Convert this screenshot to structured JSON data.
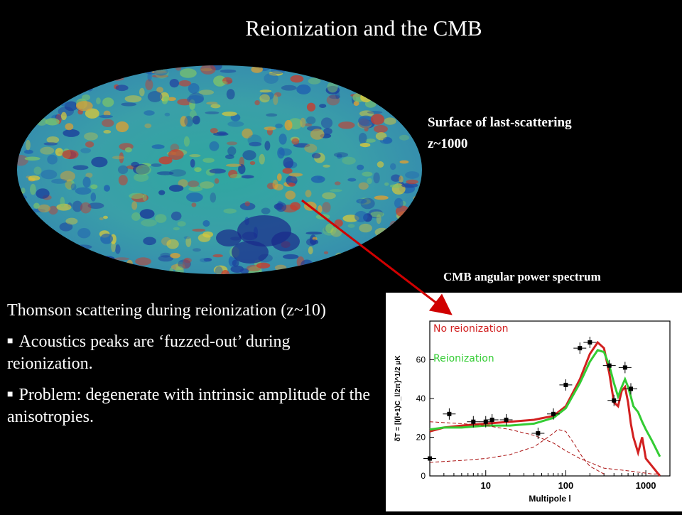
{
  "slide": {
    "title": "Reionization and the CMB",
    "surface_label": {
      "line1": "Surface of last-scattering",
      "line2": "z~1000"
    },
    "spectrum_caption": "CMB angular power spectrum",
    "body": {
      "intro": "Thomson scattering during reionization (z~10)",
      "bullets": [
        "Acoustics peaks are ‘fuzzed-out’ during reionization.",
        "Problem: degenerate with intrinsic amplitude of the anisotropies."
      ]
    }
  },
  "colors": {
    "background": "#000000",
    "text": "#ffffff",
    "arrow": "#d00000",
    "no_reion": "#d22020",
    "reion": "#33cc33"
  },
  "chart_data": {
    "type": "line",
    "title": "",
    "xlabel": "Multipole l",
    "ylabel": "δT = [l(l+1)C_l/2π]^1/2 μK",
    "xscale": "log",
    "xlim": [
      2,
      2000
    ],
    "ylim": [
      0,
      80
    ],
    "x_ticks": [
      "10",
      "100",
      "1000"
    ],
    "y_ticks": [
      "0",
      "20",
      "40",
      "60"
    ],
    "legend": [
      "No reionization",
      "Reionization"
    ],
    "series": [
      {
        "name": "No reionization",
        "color": "#d22020",
        "x": [
          2,
          3,
          5,
          10,
          20,
          40,
          70,
          100,
          150,
          200,
          250,
          300,
          350,
          400,
          450,
          500,
          550,
          600,
          650,
          700,
          800,
          900,
          1000,
          1200,
          1500
        ],
        "y": [
          23,
          25,
          26,
          27,
          28,
          29,
          31,
          36,
          50,
          63,
          69,
          66,
          53,
          38,
          36,
          44,
          46,
          38,
          27,
          20,
          12,
          20,
          9,
          5,
          0
        ]
      },
      {
        "name": "Reionization",
        "color": "#33cc33",
        "x": [
          2,
          3,
          5,
          10,
          20,
          40,
          70,
          100,
          150,
          200,
          250,
          300,
          350,
          400,
          450,
          500,
          550,
          600,
          650,
          700,
          800,
          900,
          1000,
          1200,
          1500
        ],
        "y": [
          24,
          25,
          25,
          26,
          26,
          27,
          30,
          35,
          48,
          59,
          65,
          64,
          57,
          48,
          41,
          46,
          50,
          46,
          41,
          36,
          33,
          28,
          24,
          18,
          10
        ]
      },
      {
        "name": "",
        "color": "#aa1111",
        "dashed": true,
        "x": [
          2,
          5,
          10,
          20,
          40,
          70,
          100,
          150,
          200,
          300,
          500,
          800,
          1200,
          1500
        ],
        "y": [
          28,
          27,
          26,
          24,
          21,
          17,
          13,
          9,
          7,
          4,
          3,
          2,
          1,
          1
        ]
      },
      {
        "name": "",
        "color": "#aa1111",
        "dashed": true,
        "x": [
          2,
          5,
          10,
          20,
          40,
          60,
          80,
          100,
          130,
          160,
          200,
          300
        ],
        "y": [
          7,
          8,
          9,
          11,
          15,
          20,
          24,
          23,
          16,
          10,
          5,
          1
        ]
      }
    ],
    "points": [
      {
        "x": 2,
        "y": 9
      },
      {
        "x": 3.5,
        "y": 32
      },
      {
        "x": 7,
        "y": 28
      },
      {
        "x": 10,
        "y": 28
      },
      {
        "x": 12,
        "y": 29
      },
      {
        "x": 18,
        "y": 29
      },
      {
        "x": 45,
        "y": 22
      },
      {
        "x": 70,
        "y": 32
      },
      {
        "x": 100,
        "y": 47
      },
      {
        "x": 150,
        "y": 66
      },
      {
        "x": 200,
        "y": 69
      },
      {
        "x": 350,
        "y": 57
      },
      {
        "x": 400,
        "y": 39
      },
      {
        "x": 550,
        "y": 56
      },
      {
        "x": 650,
        "y": 45
      }
    ]
  }
}
